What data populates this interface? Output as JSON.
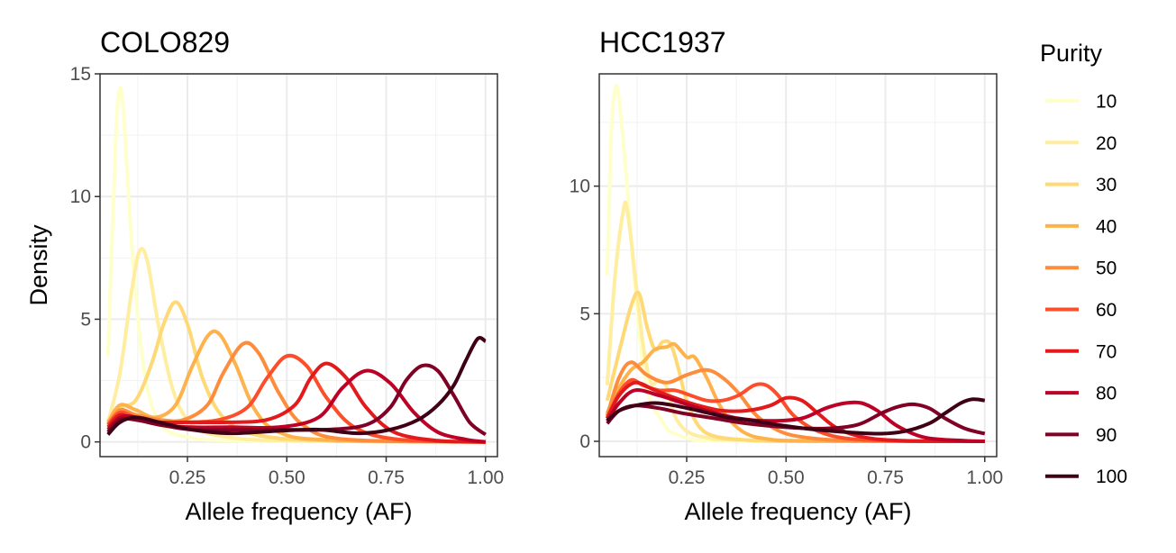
{
  "chart_data": [
    {
      "type": "line",
      "title": "COLO829",
      "xlabel": "Allele frequency (AF)",
      "ylabel": "Density",
      "xlim": [
        0.03,
        1.03
      ],
      "ylim": [
        -0.6,
        15.0
      ],
      "xticks": [
        0.25,
        0.5,
        0.75,
        1.0
      ],
      "xtick_labels": [
        "0.25",
        "0.50",
        "0.75",
        "1.00"
      ],
      "yticks": [
        0,
        5,
        10,
        15
      ],
      "ytick_labels": [
        "0",
        "5",
        "10",
        "15"
      ],
      "grid": true,
      "series": [
        {
          "name": "10",
          "color": "#FFFFCC",
          "x": [
            0.05,
            0.07,
            0.08,
            0.09,
            0.11,
            0.14,
            0.18,
            0.25,
            0.4,
            1.0
          ],
          "y": [
            3.5,
            12.5,
            14.4,
            13.2,
            8.0,
            3.0,
            0.8,
            0.2,
            0.05,
            0.0
          ]
        },
        {
          "name": "20",
          "color": "#FFEDA0",
          "x": [
            0.05,
            0.08,
            0.11,
            0.13,
            0.15,
            0.18,
            0.22,
            0.27,
            0.35,
            0.5,
            1.0
          ],
          "y": [
            0.8,
            2.8,
            6.2,
            7.8,
            7.3,
            4.5,
            1.8,
            0.6,
            0.2,
            0.05,
            0.0
          ]
        },
        {
          "name": "30",
          "color": "#FED976",
          "x": [
            0.05,
            0.08,
            0.12,
            0.16,
            0.19,
            0.22,
            0.25,
            0.29,
            0.34,
            0.42,
            0.6,
            1.0
          ],
          "y": [
            0.8,
            1.4,
            1.7,
            3.2,
            4.8,
            5.7,
            4.8,
            2.5,
            1.0,
            0.3,
            0.05,
            0.0
          ]
        },
        {
          "name": "40",
          "color": "#FEB24C",
          "x": [
            0.05,
            0.08,
            0.12,
            0.17,
            0.22,
            0.26,
            0.3,
            0.33,
            0.37,
            0.42,
            0.48,
            0.6,
            1.0
          ],
          "y": [
            0.8,
            1.5,
            1.3,
            1.0,
            1.5,
            3.0,
            4.3,
            4.4,
            3.2,
            1.3,
            0.4,
            0.08,
            0.0
          ]
        },
        {
          "name": "50",
          "color": "#FD8D3C",
          "x": [
            0.05,
            0.08,
            0.12,
            0.18,
            0.24,
            0.3,
            0.34,
            0.39,
            0.43,
            0.48,
            0.54,
            0.65,
            1.0
          ],
          "y": [
            0.7,
            1.3,
            1.1,
            0.9,
            0.9,
            1.5,
            2.8,
            4.0,
            3.6,
            2.0,
            0.7,
            0.1,
            0.0
          ]
        },
        {
          "name": "60",
          "color": "#FC4E2A",
          "x": [
            0.05,
            0.08,
            0.12,
            0.18,
            0.25,
            0.33,
            0.4,
            0.45,
            0.5,
            0.55,
            0.6,
            0.67,
            0.78,
            1.0
          ],
          "y": [
            0.7,
            1.2,
            1.0,
            0.8,
            0.8,
            0.9,
            1.4,
            2.6,
            3.5,
            3.1,
            1.8,
            0.6,
            0.1,
            0.0
          ]
        },
        {
          "name": "70",
          "color": "#E31A1C",
          "x": [
            0.05,
            0.08,
            0.12,
            0.18,
            0.25,
            0.35,
            0.45,
            0.52,
            0.56,
            0.6,
            0.65,
            0.7,
            0.77,
            0.88,
            1.0
          ],
          "y": [
            0.6,
            1.1,
            0.9,
            0.8,
            0.8,
            0.8,
            0.9,
            1.5,
            2.6,
            3.2,
            2.6,
            1.4,
            0.4,
            0.05,
            0.0
          ]
        },
        {
          "name": "80",
          "color": "#BD0026",
          "x": [
            0.05,
            0.08,
            0.12,
            0.18,
            0.26,
            0.36,
            0.48,
            0.58,
            0.64,
            0.7,
            0.76,
            0.82,
            0.88,
            0.95,
            1.0
          ],
          "y": [
            0.5,
            1.0,
            1.0,
            0.7,
            0.6,
            0.6,
            0.6,
            1.0,
            2.2,
            2.9,
            2.4,
            1.2,
            0.4,
            0.1,
            0.0
          ]
        },
        {
          "name": "90",
          "color": "#800026",
          "x": [
            0.05,
            0.08,
            0.12,
            0.18,
            0.26,
            0.36,
            0.48,
            0.6,
            0.7,
            0.76,
            0.8,
            0.84,
            0.88,
            0.92,
            0.96,
            1.0
          ],
          "y": [
            0.4,
            0.9,
            0.9,
            0.7,
            0.5,
            0.5,
            0.5,
            0.5,
            0.7,
            1.4,
            2.5,
            3.1,
            2.9,
            1.9,
            0.8,
            0.3
          ]
        },
        {
          "name": "100",
          "color": "#3F0016",
          "x": [
            0.05,
            0.08,
            0.12,
            0.18,
            0.26,
            0.36,
            0.48,
            0.58,
            0.68,
            0.76,
            0.83,
            0.88,
            0.92,
            0.95,
            0.98,
            1.0
          ],
          "y": [
            0.3,
            0.8,
            1.0,
            0.8,
            0.5,
            0.35,
            0.45,
            0.5,
            0.35,
            0.5,
            0.9,
            1.5,
            2.3,
            3.3,
            4.2,
            4.1
          ]
        }
      ]
    },
    {
      "type": "line",
      "title": "HCC1937",
      "xlabel": "Allele frequency (AF)",
      "ylabel": "",
      "xlim": [
        0.03,
        1.03
      ],
      "ylim": [
        -0.6,
        14.4
      ],
      "xticks": [
        0.25,
        0.5,
        0.75,
        1.0
      ],
      "xtick_labels": [
        "0.25",
        "0.50",
        "0.75",
        "1.00"
      ],
      "yticks": [
        0,
        5,
        10
      ],
      "ytick_labels": [
        "0",
        "5",
        "10"
      ],
      "grid": true,
      "series": [
        {
          "name": "10",
          "color": "#FFFFCC",
          "x": [
            0.05,
            0.06,
            0.07,
            0.08,
            0.1,
            0.12,
            0.14,
            0.16,
            0.18,
            0.2,
            0.22,
            0.26,
            0.35,
            1.0
          ],
          "y": [
            6.5,
            12.0,
            13.8,
            13.4,
            10.0,
            6.0,
            3.0,
            1.5,
            1.0,
            0.5,
            0.3,
            0.1,
            0.02,
            0.0
          ]
        },
        {
          "name": "20",
          "color": "#FFEDA0",
          "x": [
            0.05,
            0.07,
            0.09,
            0.1,
            0.12,
            0.14,
            0.16,
            0.18,
            0.2,
            0.22,
            0.25,
            0.3,
            0.4,
            1.0
          ],
          "y": [
            2.2,
            6.5,
            9.0,
            9.1,
            6.5,
            3.8,
            2.3,
            2.4,
            2.1,
            1.0,
            0.4,
            0.15,
            0.05,
            0.0
          ]
        },
        {
          "name": "30",
          "color": "#FED976",
          "x": [
            0.05,
            0.08,
            0.11,
            0.13,
            0.15,
            0.17,
            0.19,
            0.21,
            0.23,
            0.25,
            0.28,
            0.32,
            0.4,
            0.5,
            1.0
          ],
          "y": [
            1.6,
            3.5,
            5.3,
            5.8,
            4.5,
            3.6,
            3.9,
            3.8,
            2.8,
            1.6,
            0.6,
            0.2,
            0.05,
            0.01,
            0.0
          ]
        },
        {
          "name": "40",
          "color": "#FEB24C",
          "x": [
            0.05,
            0.08,
            0.11,
            0.14,
            0.17,
            0.2,
            0.22,
            0.25,
            0.27,
            0.3,
            0.33,
            0.36,
            0.4,
            0.45,
            0.55,
            1.0
          ],
          "y": [
            1.1,
            2.1,
            2.8,
            3.1,
            3.6,
            3.7,
            3.8,
            3.3,
            3.3,
            2.5,
            1.5,
            0.8,
            0.3,
            0.1,
            0.01,
            0.0
          ]
        },
        {
          "name": "50",
          "color": "#FD8D3C",
          "x": [
            0.05,
            0.08,
            0.11,
            0.15,
            0.2,
            0.25,
            0.3,
            0.34,
            0.38,
            0.42,
            0.46,
            0.5,
            0.55,
            0.62,
            0.75,
            1.0
          ],
          "y": [
            1.0,
            2.5,
            3.1,
            2.6,
            2.3,
            2.6,
            2.8,
            2.5,
            1.9,
            1.1,
            0.6,
            0.3,
            0.15,
            0.05,
            0.01,
            0.0
          ]
        },
        {
          "name": "60",
          "color": "#FC4E2A",
          "x": [
            0.05,
            0.08,
            0.11,
            0.14,
            0.18,
            0.22,
            0.26,
            0.3,
            0.34,
            0.38,
            0.42,
            0.45,
            0.48,
            0.52,
            0.58,
            0.66,
            0.8,
            1.0
          ],
          "y": [
            0.9,
            1.9,
            2.4,
            2.2,
            2.0,
            2.0,
            1.8,
            1.6,
            1.6,
            1.8,
            2.2,
            2.2,
            1.8,
            1.0,
            0.4,
            0.1,
            0.01,
            0.0
          ]
        },
        {
          "name": "70",
          "color": "#E31A1C",
          "x": [
            0.05,
            0.08,
            0.12,
            0.17,
            0.22,
            0.28,
            0.34,
            0.4,
            0.46,
            0.5,
            0.54,
            0.58,
            0.63,
            0.7,
            0.8,
            1.0
          ],
          "y": [
            0.9,
            1.8,
            2.3,
            2.0,
            1.7,
            1.4,
            1.2,
            1.2,
            1.4,
            1.7,
            1.6,
            1.1,
            0.5,
            0.15,
            0.02,
            0.0
          ]
        },
        {
          "name": "80",
          "color": "#BD0026",
          "x": [
            0.05,
            0.08,
            0.12,
            0.18,
            0.24,
            0.3,
            0.38,
            0.46,
            0.54,
            0.6,
            0.65,
            0.69,
            0.73,
            0.78,
            0.85,
            0.95,
            1.0
          ],
          "y": [
            0.8,
            1.5,
            2.0,
            1.8,
            1.5,
            1.2,
            0.9,
            0.8,
            0.9,
            1.3,
            1.5,
            1.5,
            1.2,
            0.6,
            0.15,
            0.02,
            0.0
          ]
        },
        {
          "name": "90",
          "color": "#800026",
          "x": [
            0.05,
            0.08,
            0.12,
            0.18,
            0.24,
            0.32,
            0.4,
            0.5,
            0.6,
            0.68,
            0.74,
            0.78,
            0.82,
            0.86,
            0.9,
            0.95,
            1.0
          ],
          "y": [
            0.7,
            1.2,
            1.4,
            1.3,
            1.1,
            0.9,
            0.7,
            0.55,
            0.5,
            0.65,
            1.1,
            1.35,
            1.45,
            1.3,
            0.9,
            0.5,
            0.3
          ]
        },
        {
          "name": "100",
          "color": "#3F0016",
          "x": [
            0.05,
            0.08,
            0.12,
            0.17,
            0.22,
            0.28,
            0.35,
            0.42,
            0.5,
            0.58,
            0.66,
            0.74,
            0.8,
            0.86,
            0.9,
            0.94,
            0.97,
            1.0
          ],
          "y": [
            0.8,
            1.2,
            1.4,
            1.5,
            1.4,
            1.2,
            0.95,
            0.8,
            0.6,
            0.45,
            0.35,
            0.3,
            0.4,
            0.7,
            1.1,
            1.5,
            1.65,
            1.6
          ]
        }
      ]
    }
  ],
  "legend": {
    "title": "Purity",
    "position": "right",
    "items": [
      {
        "label": "10",
        "color": "#FFFFCC"
      },
      {
        "label": "20",
        "color": "#FFEDA0"
      },
      {
        "label": "30",
        "color": "#FED976"
      },
      {
        "label": "40",
        "color": "#FEB24C"
      },
      {
        "label": "50",
        "color": "#FD8D3C"
      },
      {
        "label": "60",
        "color": "#FC4E2A"
      },
      {
        "label": "70",
        "color": "#E31A1C"
      },
      {
        "label": "80",
        "color": "#BD0026"
      },
      {
        "label": "90",
        "color": "#800026"
      },
      {
        "label": "100",
        "color": "#3F0016"
      }
    ]
  }
}
